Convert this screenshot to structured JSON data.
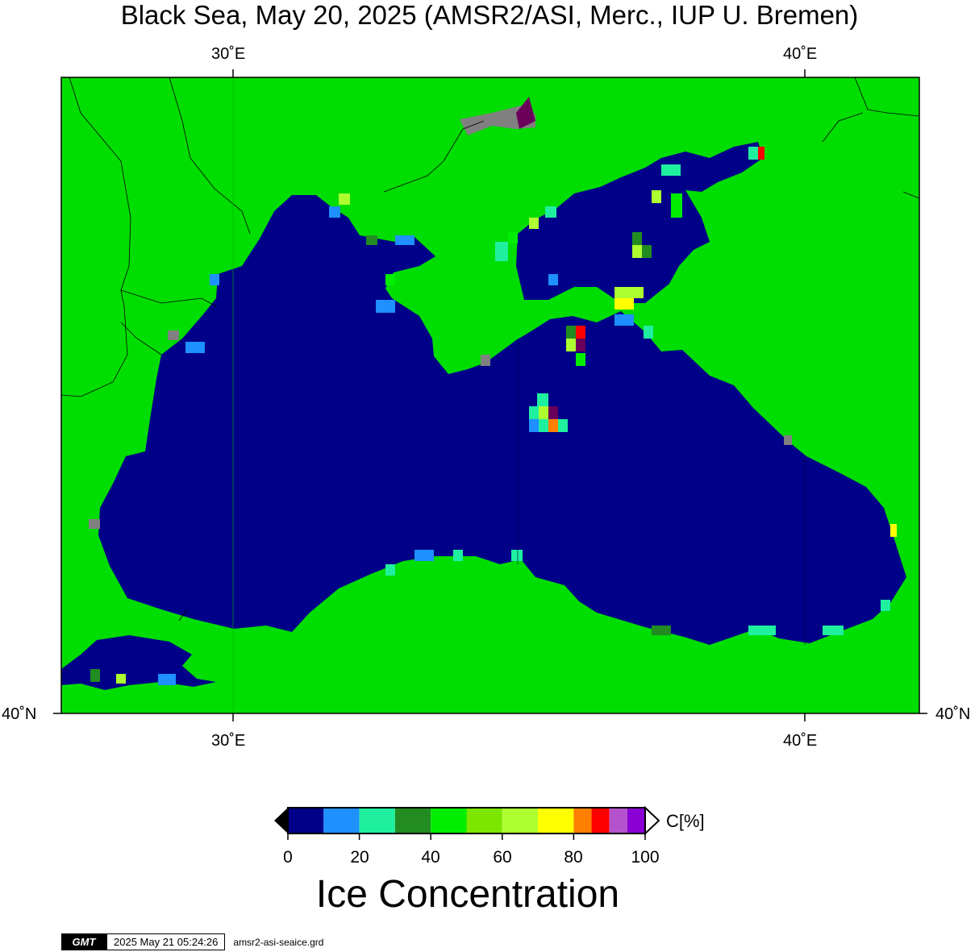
{
  "title": "Black Sea, May 20, 2025 (AMSR2/ASI, Merc., IUP U. Bremen)",
  "axes": {
    "x_ticks_top": [
      "30˚E",
      "40˚E"
    ],
    "x_ticks_bottom": [
      "30˚E",
      "40˚E"
    ],
    "y_tick_left": "40˚N",
    "y_tick_right": "40˚N"
  },
  "colors": {
    "land": "#00dd00",
    "water_0": "#000088",
    "no_data": "#808080",
    "frame": "#000000"
  },
  "colorbar": {
    "title": "Ice Concentration",
    "unit": "C[%]",
    "tick_labels": [
      "0",
      "20",
      "40",
      "60",
      "80",
      "100"
    ],
    "bins": [
      {
        "from": 0,
        "to": 10,
        "color": "#000088"
      },
      {
        "from": 10,
        "to": 20,
        "color": "#1e90ff"
      },
      {
        "from": 20,
        "to": 30,
        "color": "#1ef0a0"
      },
      {
        "from": 30,
        "to": 40,
        "color": "#228b22"
      },
      {
        "from": 40,
        "to": 50,
        "color": "#00ee00"
      },
      {
        "from": 50,
        "to": 60,
        "color": "#7ce600"
      },
      {
        "from": 60,
        "to": 70,
        "color": "#adff2f"
      },
      {
        "from": 70,
        "to": 80,
        "color": "#ffff00"
      },
      {
        "from": 80,
        "to": 85,
        "color": "#ff7f00"
      },
      {
        "from": 85,
        "to": 90,
        "color": "#ff0000"
      },
      {
        "from": 90,
        "to": 95,
        "color": "#b452cd"
      },
      {
        "from": 95,
        "to": 100,
        "color": "#8a00d4"
      }
    ]
  },
  "footer": {
    "logo": "GMT",
    "timestamp": "2025 May 21 05:24:26",
    "filename": "amsr2-asi-seaice.grd"
  }
}
